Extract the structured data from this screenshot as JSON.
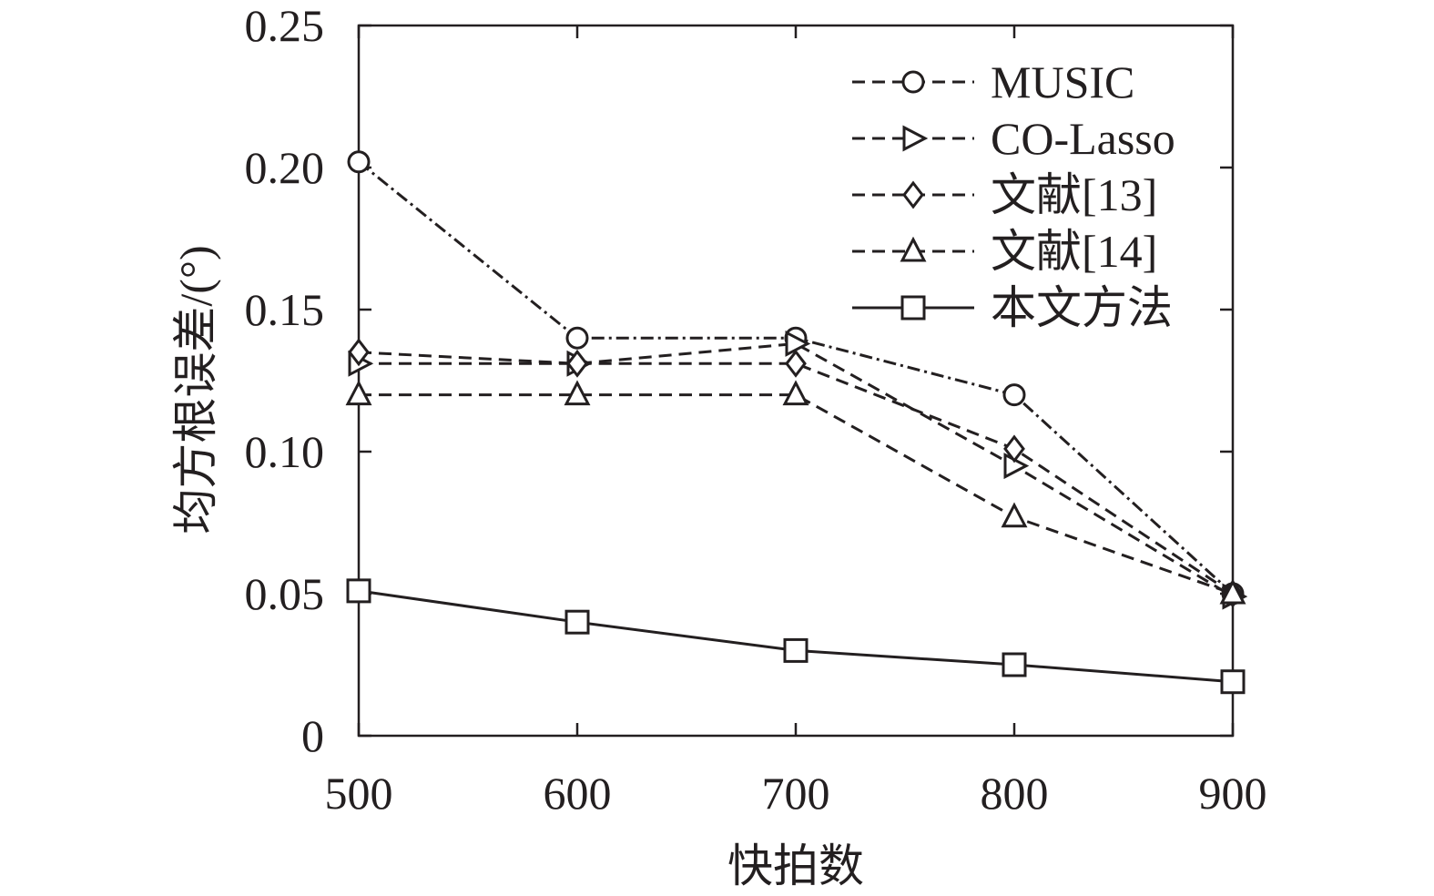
{
  "chart_data": {
    "type": "line",
    "title": "",
    "xlabel": "快拍数",
    "ylabel": "均方根误差/(°)",
    "x": [
      500,
      600,
      700,
      800,
      900
    ],
    "xlim": [
      500,
      900
    ],
    "ylim": [
      0,
      0.25
    ],
    "xticks": [
      "500",
      "600",
      "700",
      "800",
      "900"
    ],
    "yticks": [
      "0",
      "0.05",
      "0.10",
      "0.15",
      "0.20",
      "0.25"
    ],
    "ytick_values": [
      0,
      0.05,
      0.1,
      0.15,
      0.2,
      0.25
    ],
    "grid": false,
    "legend_position": "top-right",
    "series": [
      {
        "name": "MUSIC",
        "marker": "circle",
        "line_style": "dash-dot",
        "values": [
          0.202,
          0.14,
          0.14,
          0.12,
          0.05
        ]
      },
      {
        "name": "CO-Lasso",
        "marker": "triangle-right",
        "line_style": "dashed",
        "values": [
          0.131,
          0.131,
          0.138,
          0.095,
          0.049
        ]
      },
      {
        "name": "文献[13]",
        "marker": "diamond",
        "line_style": "dashed",
        "values": [
          0.135,
          0.131,
          0.131,
          0.101,
          0.05
        ]
      },
      {
        "name": "文献[14]",
        "marker": "triangle-up",
        "line_style": "dashed",
        "values": [
          0.12,
          0.12,
          0.12,
          0.077,
          0.05
        ]
      },
      {
        "name": "本文方法",
        "marker": "square",
        "line_style": "solid",
        "values": [
          0.051,
          0.04,
          0.03,
          0.025,
          0.019
        ]
      }
    ],
    "colors": {
      "line": "#231f20",
      "background": "#ffffff"
    }
  }
}
